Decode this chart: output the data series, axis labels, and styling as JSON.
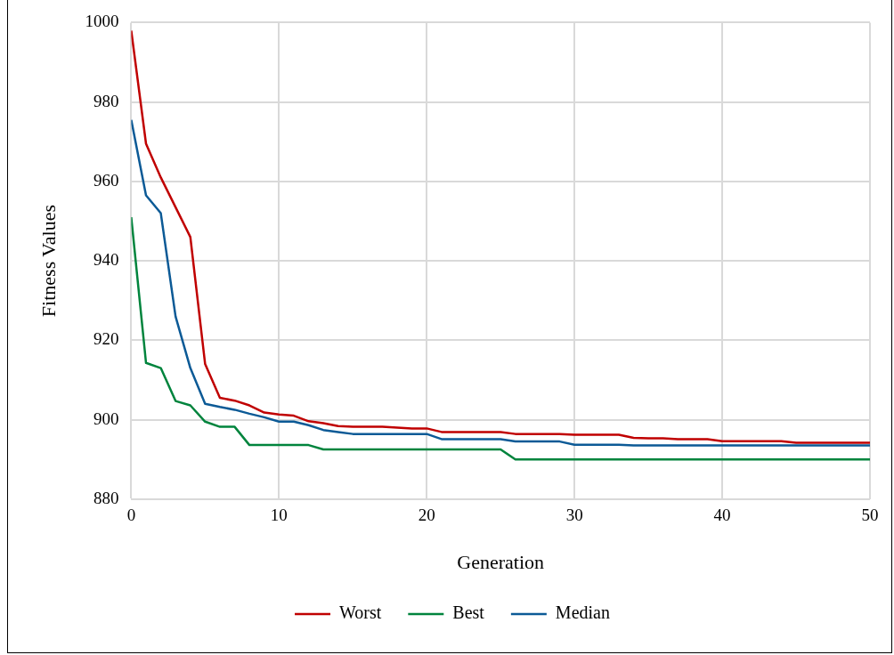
{
  "chart_data": {
    "type": "line",
    "xlabel": "Generation",
    "ylabel": "Fitness Values",
    "x": [
      0,
      1,
      2,
      3,
      4,
      5,
      6,
      7,
      8,
      9,
      10,
      11,
      12,
      13,
      14,
      15,
      16,
      17,
      18,
      19,
      20,
      21,
      22,
      23,
      24,
      25,
      26,
      27,
      28,
      29,
      30,
      31,
      32,
      33,
      34,
      35,
      36,
      37,
      38,
      39,
      40,
      41,
      42,
      43,
      44,
      45,
      46,
      47,
      48,
      49,
      50
    ],
    "series": [
      {
        "name": "Worst",
        "color": "#c00000",
        "values": [
          998,
          969.5,
          961,
          953.5,
          946,
          914,
          905.5,
          904.8,
          903.6,
          901.8,
          901.3,
          901,
          899.6,
          899.1,
          898.4,
          898.2,
          898.2,
          898.2,
          898,
          897.8,
          897.8,
          896.9,
          896.9,
          896.9,
          896.9,
          896.9,
          896.4,
          896.4,
          896.4,
          896.4,
          896.2,
          896.2,
          896.2,
          896.2,
          895.4,
          895.3,
          895.3,
          895.1,
          895.1,
          895.1,
          894.6,
          894.6,
          894.6,
          894.6,
          894.6,
          894.2,
          894.2,
          894.2,
          894.2,
          894.2,
          894.2
        ]
      },
      {
        "name": "Best",
        "color": "#00843d",
        "values": [
          951,
          914.3,
          913,
          904.7,
          903.6,
          899.5,
          898.2,
          898.2,
          893.6,
          893.6,
          893.6,
          893.6,
          893.6,
          892.5,
          892.5,
          892.5,
          892.5,
          892.5,
          892.5,
          892.5,
          892.5,
          892.5,
          892.5,
          892.5,
          892.5,
          892.5,
          890,
          890,
          890,
          890,
          890,
          890,
          890,
          890,
          890,
          890,
          890,
          890,
          890,
          890,
          890,
          890,
          890,
          890,
          890,
          890,
          890,
          890,
          890,
          890,
          890
        ]
      },
      {
        "name": "Median",
        "color": "#0c5a96",
        "values": [
          975.5,
          956.5,
          952,
          926,
          913,
          904,
          903.2,
          902.5,
          901.5,
          900.6,
          899.5,
          899.5,
          898.6,
          897.4,
          896.9,
          896.4,
          896.4,
          896.4,
          896.4,
          896.4,
          896.4,
          895.1,
          895.1,
          895.1,
          895.1,
          895.1,
          894.5,
          894.5,
          894.5,
          894.5,
          893.7,
          893.7,
          893.7,
          893.7,
          893.5,
          893.5,
          893.5,
          893.5,
          893.5,
          893.5,
          893.5,
          893.5,
          893.5,
          893.5,
          893.5,
          893.5,
          893.5,
          893.5,
          893.5,
          893.5,
          893.5
        ]
      }
    ],
    "xlim": [
      0,
      50
    ],
    "xticks": [
      0,
      10,
      20,
      30,
      40,
      50
    ],
    "ylim": [
      880,
      1000
    ],
    "yticks": [
      880,
      900,
      920,
      940,
      960,
      980,
      1000
    ],
    "grid": true,
    "legend": "bottom",
    "marker": "none",
    "line_style": "solid"
  }
}
